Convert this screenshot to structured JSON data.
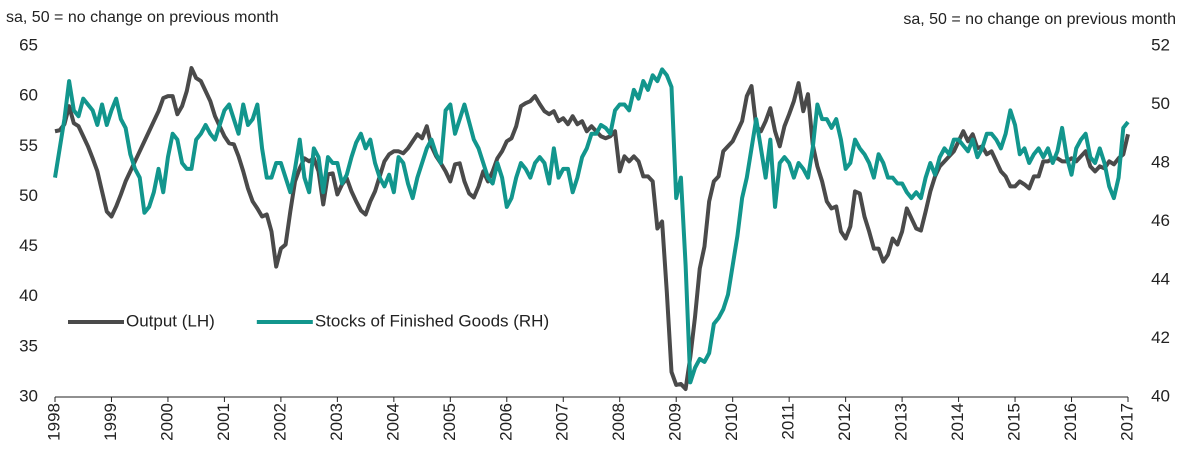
{
  "chart_data": {
    "type": "line",
    "y_label": "sa, 50 = no change on previous month",
    "y2_label": "sa, 50 = no change on previous month",
    "categories": [
      "1998",
      null,
      null,
      null,
      null,
      null,
      null,
      null,
      null,
      null,
      null,
      null,
      "1999",
      null,
      null,
      null,
      null,
      null,
      null,
      null,
      null,
      null,
      null,
      null,
      "2000",
      null,
      null,
      null,
      null,
      null,
      null,
      null,
      null,
      null,
      null,
      null,
      "2001",
      null,
      null,
      null,
      null,
      null,
      null,
      null,
      null,
      null,
      null,
      null,
      "2002",
      null,
      null,
      null,
      null,
      null,
      null,
      null,
      null,
      null,
      null,
      null,
      "2003",
      null,
      null,
      null,
      null,
      null,
      null,
      null,
      null,
      null,
      null,
      null,
      "2004",
      null,
      null,
      null,
      null,
      null,
      null,
      null,
      null,
      null,
      null,
      null,
      "2005",
      null,
      null,
      null,
      null,
      null,
      null,
      null,
      null,
      null,
      null,
      null,
      "2006",
      null,
      null,
      null,
      null,
      null,
      null,
      null,
      null,
      null,
      null,
      null,
      "2007",
      null,
      null,
      null,
      null,
      null,
      null,
      null,
      null,
      null,
      null,
      null,
      "2008",
      null,
      null,
      null,
      null,
      null,
      null,
      null,
      null,
      null,
      null,
      null,
      "2009",
      null,
      null,
      null,
      null,
      null,
      null,
      null,
      null,
      null,
      null,
      null,
      "2010",
      null,
      null,
      null,
      null,
      null,
      null,
      null,
      null,
      null,
      null,
      null,
      "2011",
      null,
      null,
      null,
      null,
      null,
      null,
      null,
      null,
      null,
      null,
      null,
      "2012",
      null,
      null,
      null,
      null,
      null,
      null,
      null,
      null,
      null,
      null,
      null,
      "2013",
      null,
      null,
      null,
      null,
      null,
      null,
      null,
      null,
      null,
      null,
      null,
      "2014",
      null,
      null,
      null,
      null,
      null,
      null,
      null,
      null,
      null,
      null,
      null,
      "2015",
      null,
      null,
      null,
      null,
      null,
      null,
      null,
      null,
      null,
      null,
      null,
      "2016",
      null,
      null,
      null,
      null,
      null,
      null,
      null,
      null,
      null,
      null,
      null,
      "2017"
    ],
    "series": [
      {
        "name": "Output (LH)",
        "color": "#4a4a4a",
        "axis": "y",
        "values": [
          56.5,
          56.6,
          57.2,
          59.0,
          57.3,
          57.0,
          56.0,
          55.0,
          53.8,
          52.5,
          50.5,
          48.5,
          48.0,
          49.0,
          50.2,
          51.5,
          52.5,
          53.5,
          54.5,
          55.5,
          56.5,
          57.5,
          58.5,
          59.8,
          60.0,
          60.0,
          58.2,
          59.0,
          60.5,
          62.8,
          61.8,
          61.5,
          60.5,
          59.5,
          58.0,
          57.0,
          56.0,
          55.3,
          55.2,
          54.0,
          52.5,
          50.8,
          49.5,
          48.8,
          48.0,
          48.2,
          46.5,
          43.0,
          44.8,
          45.2,
          48.5,
          51.5,
          52.8,
          53.8,
          53.5,
          53.8,
          52.5,
          49.2,
          52.2,
          52.3,
          50.2,
          51.2,
          51.8,
          50.5,
          49.5,
          48.6,
          48.2,
          49.5,
          50.5,
          52.0,
          53.5,
          54.2,
          54.5,
          54.5,
          54.3,
          54.8,
          55.5,
          56.2,
          55.8,
          57.0,
          55.0,
          54.0,
          53.3,
          52.5,
          51.5,
          53.2,
          53.3,
          51.5,
          50.3,
          49.9,
          51.0,
          52.5,
          51.5,
          52.5,
          53.8,
          54.5,
          55.5,
          55.8,
          57.0,
          59.0,
          59.3,
          59.5,
          60.0,
          59.2,
          58.5,
          58.2,
          58.5,
          57.5,
          57.8,
          57.2,
          58.0,
          57.2,
          57.5,
          56.5,
          57.0,
          56.5,
          56.0,
          55.8,
          56.0,
          56.5,
          52.5,
          54.0,
          53.5,
          54.0,
          53.5,
          52.0,
          52.0,
          51.5,
          46.8,
          47.5,
          40.5,
          32.5,
          31.2,
          31.3,
          30.8,
          34.0,
          38.0,
          42.8,
          45.0,
          49.5,
          51.5,
          52.0,
          54.5,
          55.0,
          55.5,
          56.5,
          57.5,
          60.0,
          61.0,
          57.0,
          56.5,
          57.5,
          58.8,
          56.5,
          55.0,
          57.0,
          58.2,
          59.5,
          61.3,
          58.5,
          60.2,
          55.2,
          53.0,
          51.5,
          49.5,
          48.8,
          49.0,
          46.5,
          45.8,
          47.0,
          50.5,
          50.3,
          48.0,
          46.5,
          44.8,
          44.8,
          43.5,
          44.2,
          45.8,
          45.2,
          46.5,
          48.8,
          47.8,
          46.8,
          46.6,
          48.5,
          50.5,
          52.0,
          53.0,
          53.5,
          54.0,
          54.5,
          55.5,
          56.5,
          55.5,
          56.2,
          54.8,
          55.0,
          54.2,
          54.5,
          53.5,
          52.5,
          52.0,
          51.0,
          51.0,
          51.5,
          51.2,
          50.8,
          52.0,
          52.0,
          53.5,
          53.5,
          53.8,
          53.8,
          53.5,
          53.5,
          53.8,
          53.5,
          54.0,
          54.5,
          53.0,
          52.5,
          53.0,
          52.8,
          53.5,
          53.2,
          53.8,
          54.2,
          56.2
        ]
      },
      {
        "name": "Stocks of Finished Goods (RH)",
        "color": "#12968d",
        "axis": "y2",
        "values": [
          47.5,
          48.5,
          49.5,
          50.8,
          49.8,
          49.6,
          50.2,
          50.0,
          49.8,
          49.3,
          50.0,
          49.3,
          49.8,
          50.2,
          49.5,
          49.2,
          48.3,
          47.8,
          47.5,
          46.3,
          46.5,
          47.0,
          47.8,
          47.0,
          48.2,
          49.0,
          48.8,
          48.0,
          47.8,
          47.8,
          48.8,
          49.0,
          49.3,
          49.0,
          48.8,
          49.3,
          49.8,
          50.0,
          49.5,
          49.0,
          50.0,
          49.3,
          49.5,
          50.0,
          48.5,
          47.5,
          47.5,
          48.0,
          48.0,
          47.5,
          47.0,
          47.8,
          48.8,
          47.5,
          47.0,
          48.5,
          48.2,
          47.0,
          48.2,
          48.0,
          48.0,
          47.3,
          47.6,
          48.2,
          48.7,
          49.0,
          48.5,
          48.8,
          48.0,
          47.5,
          47.2,
          47.6,
          47.0,
          48.2,
          48.0,
          47.3,
          46.8,
          47.5,
          48.0,
          48.5,
          48.8,
          48.3,
          48.0,
          49.8,
          50.0,
          49.0,
          49.5,
          50.0,
          49.4,
          48.8,
          48.5,
          48.0,
          47.5,
          47.3,
          48.0,
          47.5,
          46.5,
          46.8,
          47.5,
          48.0,
          47.8,
          47.5,
          48.0,
          48.2,
          48.0,
          47.3,
          48.5,
          47.5,
          47.8,
          47.8,
          47.0,
          47.5,
          48.2,
          48.5,
          49.0,
          49.0,
          49.3,
          49.2,
          49.0,
          49.8,
          50.0,
          50.0,
          49.8,
          50.5,
          50.2,
          50.8,
          50.5,
          51.0,
          50.8,
          51.2,
          51.0,
          50.6,
          46.8,
          47.5,
          44.5,
          40.5,
          41.0,
          41.3,
          41.2,
          41.5,
          42.5,
          42.7,
          43.0,
          43.5,
          44.5,
          45.5,
          46.8,
          47.5,
          48.5,
          49.5,
          48.5,
          47.5,
          48.8,
          46.5,
          48.0,
          48.2,
          48.0,
          47.5,
          48.0,
          47.8,
          47.5,
          48.5,
          50.0,
          49.5,
          49.5,
          49.2,
          49.5,
          48.8,
          47.8,
          48.0,
          48.8,
          48.5,
          48.3,
          48.0,
          47.5,
          48.3,
          48.0,
          47.5,
          47.5,
          47.3,
          47.3,
          47.0,
          46.8,
          47.0,
          46.8,
          47.5,
          48.0,
          47.6,
          48.2,
          48.5,
          48.3,
          48.8,
          48.8,
          48.6,
          48.4,
          48.8,
          48.2,
          48.5,
          49.0,
          49.0,
          48.8,
          48.5,
          49.0,
          49.8,
          49.3,
          48.3,
          48.5,
          48.0,
          48.3,
          48.5,
          48.2,
          48.5,
          48.0,
          48.4,
          49.2,
          48.2,
          47.6,
          48.5,
          48.8,
          49.0,
          48.2,
          48.0,
          48.5,
          48.0,
          47.2,
          46.8,
          47.5,
          49.2,
          49.4
        ]
      }
    ],
    "ylim": [
      30,
      65
    ],
    "yticks": [
      30,
      35,
      40,
      45,
      50,
      55,
      60,
      65
    ],
    "y2lim": [
      40,
      52
    ],
    "y2ticks": [
      40,
      42,
      44,
      46,
      48,
      50,
      52
    ],
    "grid": false,
    "legend": "lower left"
  }
}
